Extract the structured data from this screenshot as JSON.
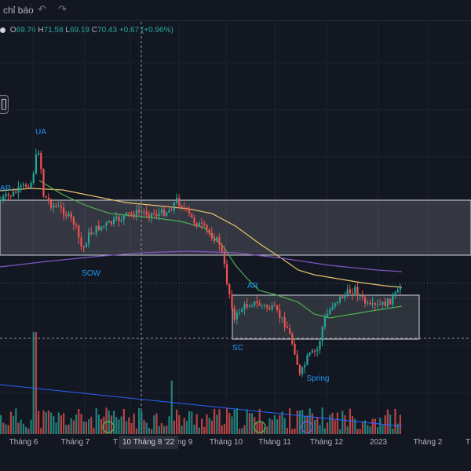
{
  "toolbar": {
    "indicators_label": "chỉ báo",
    "undo_icon": "undo-icon",
    "redo_icon": "redo-icon"
  },
  "legend": {
    "o_key": "O",
    "o_val": "69.76",
    "h_key": "H",
    "h_val": "71.58",
    "l_key": "L",
    "l_val": "69.19",
    "c_key": "C",
    "c_val": "70.43",
    "change": "+0.67 (+0.96%)"
  },
  "annotations": {
    "ua": "UA",
    "ar_top": "AR",
    "sow": "SOW",
    "ar": "AR",
    "sc": "SC",
    "spring": "Spring"
  },
  "time_axis": {
    "labels": [
      "Tháng 6",
      "Tháng 7",
      "T",
      "Tháng 9",
      "Tháng 10",
      "Tháng 11",
      "Tháng 12",
      "2023",
      "Tháng 2",
      "T"
    ],
    "crosshair_date": "10 Tháng 8 '22"
  },
  "colors": {
    "background": "#131722",
    "up": "#26a69a",
    "down": "#ef5350",
    "ma_yellow": "#e6c36b",
    "ma_green": "#4caf50",
    "ma_purple": "#7e57c2",
    "annotation": "#2196f3",
    "trendline": "#2962ff"
  },
  "chart_data": {
    "type": "candlestick",
    "last": {
      "open": 69.76,
      "high": 71.58,
      "low": 69.19,
      "close": 70.43,
      "change": 0.67,
      "change_pct": 0.96
    },
    "x_axis_labels": [
      "Tháng 6",
      "Tháng 7",
      "Tháng 9",
      "Tháng 10",
      "Tháng 11",
      "Tháng 12",
      "2023",
      "Tháng 2"
    ],
    "annotations": [
      "UA",
      "AR",
      "SOW",
      "AR",
      "SC",
      "Spring"
    ]
  }
}
